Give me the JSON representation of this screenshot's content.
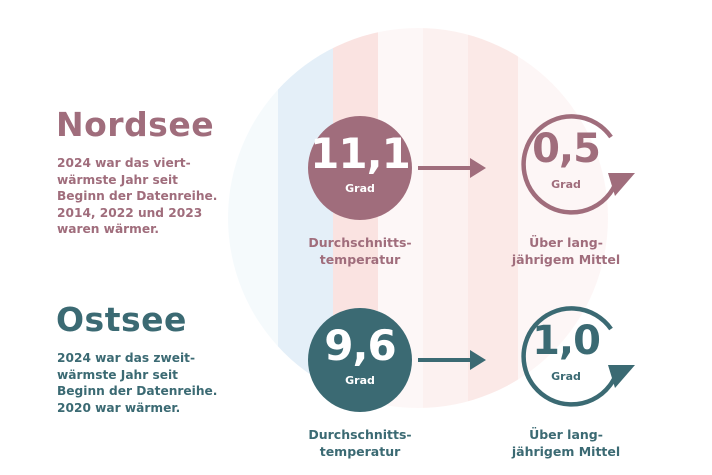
{
  "colors": {
    "nordsee": "#a06d7c",
    "ostsee": "#3b6a73",
    "stripe_blue": "#cfe3f3",
    "stripe_pink": "#f5c9c6",
    "stripe_light_pink": "#fbe3e0"
  },
  "nordsee": {
    "title": "Nordsee",
    "description": "2024 war das viert-\nwärmste Jahr seit\nBeginn der Datenreihe.\n2014, 2022 und 2023\nwaren wärmer.",
    "avg_value": "11,1",
    "avg_unit": "Grad",
    "avg_caption": "Durchschnitts-\ntemperatur",
    "anomaly_value": "0,5",
    "anomaly_unit": "Grad",
    "anomaly_caption": "Über lang-\njährigem Mittel"
  },
  "ostsee": {
    "title": "Ostsee",
    "description": "2024 war das zweit-\nwärmste Jahr seit\nBeginn der Datenreihe.\n2020 war wärmer.",
    "avg_value": "9,6",
    "avg_unit": "Grad",
    "avg_caption": "Durchschnitts-\ntemperatur",
    "anomaly_value": "1,0",
    "anomaly_unit": "Grad",
    "anomaly_caption": "Über lang-\njährigem Mittel"
  }
}
